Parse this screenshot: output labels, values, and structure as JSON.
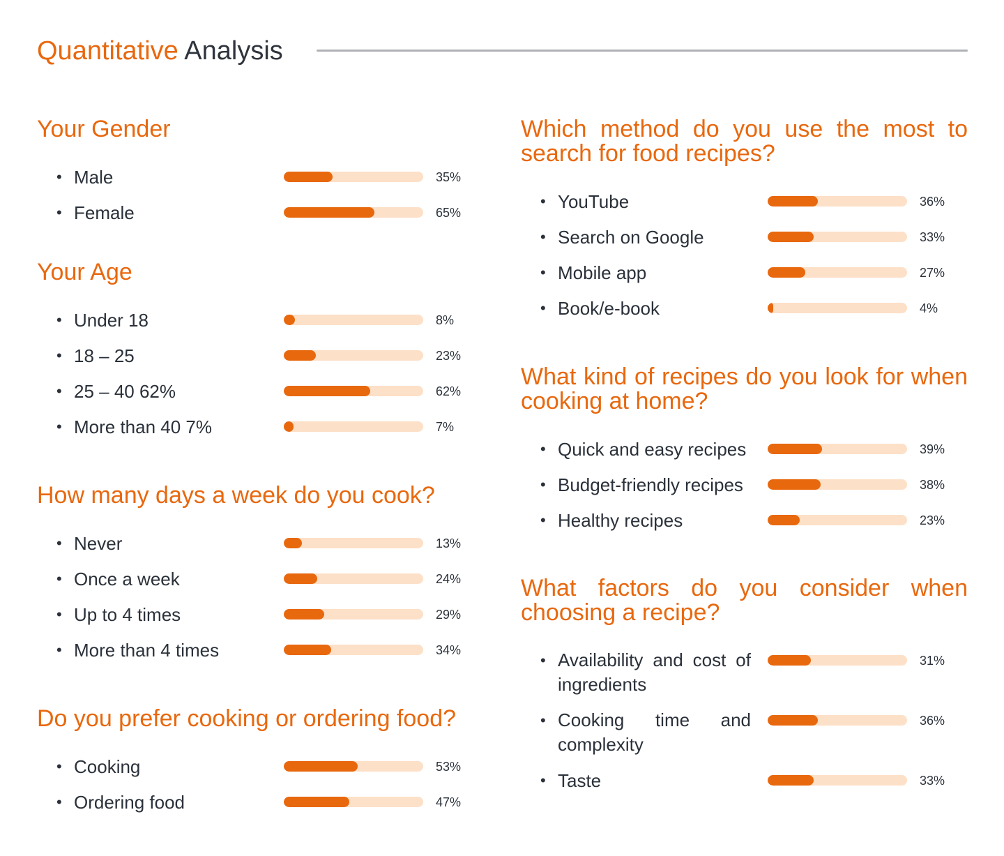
{
  "header": {
    "title_accent": "Quantitative",
    "title_rest": "Analysis"
  },
  "colors": {
    "accent": "#e8680e",
    "track": "#fde0c8",
    "text": "#2b313a",
    "rule": "#aeb1b5"
  },
  "chart_data": [
    {
      "type": "bar",
      "title": "Your Gender",
      "categories": [
        "Male",
        "Female"
      ],
      "values": [
        35,
        65
      ],
      "value_labels": [
        "35%",
        "65%"
      ],
      "xlim": [
        0,
        100
      ]
    },
    {
      "type": "bar",
      "title": "Your Age",
      "categories": [
        "Under 18",
        "18 – 25",
        "25 – 40 62%",
        "More than 40 7%"
      ],
      "values": [
        8,
        23,
        62,
        7
      ],
      "value_labels": [
        "8%",
        "23%",
        "62%",
        "7%"
      ],
      "xlim": [
        0,
        100
      ]
    },
    {
      "type": "bar",
      "title": "How many days a week do you cook?",
      "categories": [
        "Never",
        "Once a week",
        "Up to 4 times",
        "More than 4 times"
      ],
      "values": [
        13,
        24,
        29,
        34
      ],
      "value_labels": [
        "13%",
        "24%",
        "29%",
        "34%"
      ],
      "xlim": [
        0,
        100
      ]
    },
    {
      "type": "bar",
      "title": "Do you prefer cooking or ordering food?",
      "categories": [
        "Cooking",
        "Ordering food"
      ],
      "values": [
        53,
        47
      ],
      "value_labels": [
        "53%",
        "47%"
      ],
      "xlim": [
        0,
        100
      ]
    },
    {
      "type": "bar",
      "title": "Which method do you use the most to search for food recipes?",
      "categories": [
        "YouTube",
        "Search on Google",
        "Mobile app",
        "Book/e-book"
      ],
      "values": [
        36,
        33,
        27,
        4
      ],
      "value_labels": [
        "36%",
        "33%",
        "27%",
        "4%"
      ],
      "xlim": [
        0,
        100
      ]
    },
    {
      "type": "bar",
      "title": "What kind of recipes do you look for when cooking at home?",
      "categories": [
        "Quick and easy recipes",
        "Budget-friendly recipes",
        "Healthy recipes"
      ],
      "values": [
        39,
        38,
        23
      ],
      "value_labels": [
        "39%",
        "38%",
        "23%"
      ],
      "xlim": [
        0,
        100
      ]
    },
    {
      "type": "bar",
      "title": "What factors do you consider when choosing a recipe?",
      "categories": [
        "Availability and cost of ingredients",
        "Cooking time and complexity",
        "Taste"
      ],
      "values": [
        31,
        36,
        33
      ],
      "value_labels": [
        "31%",
        "36%",
        "33%"
      ],
      "xlim": [
        0,
        100
      ]
    }
  ]
}
